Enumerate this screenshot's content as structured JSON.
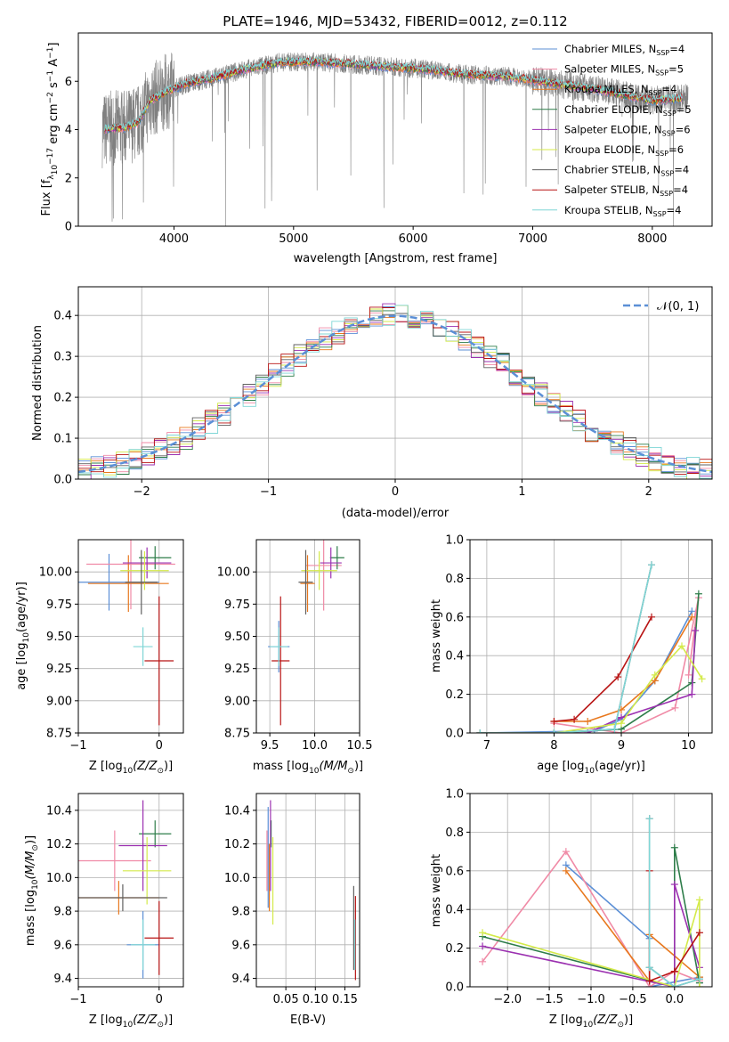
{
  "figure": {
    "title": "PLATE=1946, MJD=53432, FIBERID=0012, z=0.112"
  },
  "models": [
    {
      "name": "Chabrier MILES, N",
      "nssp": "4",
      "color": "#5b8fd6"
    },
    {
      "name": "Salpeter MILES, N",
      "nssp": "5",
      "color": "#f08aa6"
    },
    {
      "name": "Kroupa MILES, N",
      "nssp": "4",
      "color": "#e8781e"
    },
    {
      "name": "Chabrier ELODIE, N",
      "nssp": "5",
      "color": "#2e7d4a"
    },
    {
      "name": "Salpeter ELODIE, N",
      "nssp": "6",
      "color": "#9b30b0"
    },
    {
      "name": "Kroupa ELODIE, N",
      "nssp": "6",
      "color": "#d4ea4a"
    },
    {
      "name": "Chabrier STELIB, N",
      "nssp": "4",
      "color": "#606060"
    },
    {
      "name": "Salpeter STELIB, N",
      "nssp": "4",
      "color": "#b81414"
    },
    {
      "name": "Kroupa STELIB, N",
      "nssp": "4",
      "color": "#7fd6d6"
    }
  ],
  "chart_data": [
    {
      "id": "spectrum",
      "type": "line",
      "xlabel": "wavelength [Angstrom, rest frame]",
      "ylabel": "Flux [f",
      "ylabel_parts": [
        "Flux [f",
        "λ",
        "10",
        "−17",
        " erg cm",
        "−2",
        " s",
        "−1",
        " A",
        "−1",
        "]"
      ],
      "xlim": [
        3200,
        8500
      ],
      "ylim": [
        0,
        8
      ],
      "xticks": [
        4000,
        5000,
        6000,
        7000,
        8000
      ],
      "yticks": [
        0,
        2,
        4,
        6
      ],
      "legend_position": "upper-right",
      "nssp_label": "SSP",
      "continuum_points": [
        [
          3420,
          4.0
        ],
        [
          3600,
          4.1
        ],
        [
          3700,
          4.3
        ],
        [
          3800,
          5.2
        ],
        [
          3950,
          5.6
        ],
        [
          4100,
          5.9
        ],
        [
          4300,
          6.1
        ],
        [
          4600,
          6.5
        ],
        [
          4900,
          6.8
        ],
        [
          5200,
          6.8
        ],
        [
          5500,
          6.7
        ],
        [
          5800,
          6.6
        ],
        [
          6100,
          6.5
        ],
        [
          6400,
          6.3
        ],
        [
          6800,
          6.2
        ],
        [
          7200,
          5.9
        ],
        [
          7600,
          5.6
        ],
        [
          8000,
          5.2
        ],
        [
          8250,
          5.3
        ]
      ],
      "grey_data_range": [
        3400,
        8300
      ]
    },
    {
      "id": "residuals",
      "type": "histogram",
      "xlabel": "(data-model)/error",
      "ylabel": "Normed distribution",
      "xlim": [
        -2.5,
        2.5
      ],
      "ylim": [
        0,
        0.47
      ],
      "xticks": [
        -2,
        -1,
        0,
        1,
        2
      ],
      "yticks": [
        0.0,
        0.1,
        0.2,
        0.3,
        0.4
      ],
      "grid": true,
      "legend_label": "𝒩(0, 1)",
      "legend_position": "upper-right",
      "bin_width": 0.1
    },
    {
      "id": "age-vs-Z",
      "type": "scatter-errorbar",
      "xlabel": "Z [log",
      "xlabel_parts": [
        "Z [log",
        "10",
        "(Z/Z",
        "⊙",
        ")]"
      ],
      "ylabel_parts": [
        "age  [log",
        "10",
        "(age/yr)]"
      ],
      "xlim": [
        -1.0,
        0.3
      ],
      "ylim": [
        8.75,
        10.25
      ],
      "xticks": [
        -1,
        0
      ],
      "yticks": [
        8.75,
        9.0,
        9.25,
        9.5,
        9.75,
        10.0
      ],
      "grid": true,
      "points": [
        {
          "m": 0,
          "x": -0.62,
          "y": 9.92,
          "ex": 0.62,
          "ey": 0.22
        },
        {
          "m": 1,
          "x": -0.35,
          "y": 10.06,
          "ex": 0.55,
          "ey": 0.35
        },
        {
          "m": 2,
          "x": -0.38,
          "y": 9.91,
          "ex": 0.5,
          "ey": 0.22
        },
        {
          "m": 3,
          "x": -0.05,
          "y": 10.11,
          "ex": 0.2,
          "ey": 0.09
        },
        {
          "m": 4,
          "x": -0.15,
          "y": 10.07,
          "ex": 0.3,
          "ey": 0.12
        },
        {
          "m": 5,
          "x": -0.18,
          "y": 10.01,
          "ex": 0.3,
          "ey": 0.15
        },
        {
          "m": 6,
          "x": -0.22,
          "y": 9.92,
          "ex": 0.2,
          "ey": 0.25
        },
        {
          "m": 7,
          "x": 0.0,
          "y": 9.31,
          "ex": 0.18,
          "ey": 0.5
        },
        {
          "m": 8,
          "x": -0.2,
          "y": 9.42,
          "ex": 0.12,
          "ey": 0.15
        }
      ]
    },
    {
      "id": "age-vs-mass",
      "type": "scatter-errorbar",
      "xlabel_parts": [
        "mass [log",
        "10",
        "(M/M",
        "⊙",
        ")]"
      ],
      "xlim": [
        9.35,
        10.5
      ],
      "ylim": [
        8.75,
        10.25
      ],
      "xticks": [
        9.5,
        10.0,
        10.5
      ],
      "yticks": [
        8.75,
        9.0,
        9.25,
        9.5,
        9.75,
        10.0
      ],
      "grid": true,
      "points": [
        {
          "m": 0,
          "x": 9.6,
          "y": 9.42,
          "ex": 0.12,
          "ey": 0.2
        },
        {
          "m": 1,
          "x": 10.1,
          "y": 10.05,
          "ex": 0.2,
          "ey": 0.35
        },
        {
          "m": 2,
          "x": 9.92,
          "y": 9.91,
          "ex": 0.08,
          "ey": 0.22
        },
        {
          "m": 3,
          "x": 10.25,
          "y": 10.11,
          "ex": 0.08,
          "ey": 0.09
        },
        {
          "m": 4,
          "x": 10.18,
          "y": 10.07,
          "ex": 0.12,
          "ey": 0.12
        },
        {
          "m": 5,
          "x": 10.05,
          "y": 10.01,
          "ex": 0.2,
          "ey": 0.15
        },
        {
          "m": 6,
          "x": 9.9,
          "y": 9.92,
          "ex": 0.08,
          "ey": 0.25
        },
        {
          "m": 7,
          "x": 9.62,
          "y": 9.31,
          "ex": 0.1,
          "ey": 0.5
        },
        {
          "m": 8,
          "x": 9.6,
          "y": 9.42,
          "ex": 0.1,
          "ey": 0.15
        }
      ]
    },
    {
      "id": "weight-vs-age",
      "type": "line",
      "xlabel_parts": [
        "age  [log",
        "10",
        "(age/yr)]"
      ],
      "ylabel": "mass weight",
      "xlim": [
        6.75,
        10.35
      ],
      "ylim": [
        0.0,
        1.0
      ],
      "xticks": [
        7,
        8,
        9,
        10
      ],
      "yticks": [
        0.0,
        0.2,
        0.4,
        0.6,
        0.8,
        1.0
      ],
      "grid": true,
      "series": [
        {
          "m": 0,
          "x": [
            6.9,
            8.6,
            9.0,
            9.5,
            10.05
          ],
          "y": [
            0.0,
            0.01,
            0.07,
            0.27,
            0.63
          ]
        },
        {
          "m": 1,
          "x": [
            8.0,
            9.0,
            9.8,
            10.15,
            10.0
          ],
          "y": [
            0.05,
            0.0,
            0.13,
            0.7,
            0.3
          ]
        },
        {
          "m": 2,
          "x": [
            8.0,
            8.5,
            9.0,
            9.5,
            10.05
          ],
          "y": [
            0.06,
            0.06,
            0.12,
            0.27,
            0.6
          ]
        },
        {
          "m": 3,
          "x": [
            6.9,
            8.0,
            9.0,
            10.05,
            10.15
          ],
          "y": [
            0.0,
            0.0,
            0.02,
            0.26,
            0.72
          ]
        },
        {
          "m": 4,
          "x": [
            6.9,
            8.5,
            9.0,
            10.05,
            10.1
          ],
          "y": [
            0.0,
            0.0,
            0.08,
            0.2,
            0.53
          ]
        },
        {
          "m": 5,
          "x": [
            6.9,
            8.0,
            9.0,
            9.5,
            9.9,
            10.2
          ],
          "y": [
            0.0,
            0.0,
            0.05,
            0.3,
            0.45,
            0.28
          ]
        },
        {
          "m": 6,
          "x": [
            6.9,
            8.0,
            8.9,
            9.45
          ],
          "y": [
            0.0,
            0.0,
            0.02,
            0.87
          ]
        },
        {
          "m": 7,
          "x": [
            8.0,
            8.3,
            8.95,
            9.45
          ],
          "y": [
            0.06,
            0.07,
            0.29,
            0.6
          ]
        },
        {
          "m": 8,
          "x": [
            6.9,
            8.0,
            8.9,
            9.45
          ],
          "y": [
            0.0,
            0.0,
            0.02,
            0.87
          ]
        }
      ]
    },
    {
      "id": "mass-vs-Z",
      "type": "scatter-errorbar",
      "xlabel_parts": [
        "Z [log",
        "10",
        "(Z/Z",
        "⊙",
        ")]"
      ],
      "ylabel_parts": [
        "mass [log",
        "10",
        "(M/M",
        "⊙",
        ")]"
      ],
      "xlim": [
        -1.0,
        0.3
      ],
      "ylim": [
        9.35,
        10.5
      ],
      "xticks": [
        -1,
        0
      ],
      "yticks": [
        9.4,
        9.6,
        9.8,
        10.0,
        10.2,
        10.4
      ],
      "grid": true,
      "points": [
        {
          "m": 0,
          "x": -0.2,
          "y": 9.6,
          "ex": 0.2,
          "ey": 0.2
        },
        {
          "m": 1,
          "x": -0.55,
          "y": 10.1,
          "ex": 0.45,
          "ey": 0.18
        },
        {
          "m": 2,
          "x": -0.5,
          "y": 9.88,
          "ex": 0.5,
          "ey": 0.1
        },
        {
          "m": 3,
          "x": -0.05,
          "y": 10.26,
          "ex": 0.2,
          "ey": 0.08
        },
        {
          "m": 4,
          "x": -0.2,
          "y": 10.19,
          "ex": 0.3,
          "ey": 0.27
        },
        {
          "m": 5,
          "x": -0.15,
          "y": 10.04,
          "ex": 0.3,
          "ey": 0.2
        },
        {
          "m": 6,
          "x": -0.45,
          "y": 9.88,
          "ex": 0.55,
          "ey": 0.08
        },
        {
          "m": 7,
          "x": 0.0,
          "y": 9.64,
          "ex": 0.18,
          "ey": 0.22
        },
        {
          "m": 8,
          "x": -0.2,
          "y": 9.6,
          "ex": 0.15,
          "ey": 0.15
        }
      ]
    },
    {
      "id": "mass-vs-ebv",
      "type": "scatter-errorbar",
      "xlabel": "E(B-V)",
      "xlim": [
        0.0,
        0.175
      ],
      "ylim": [
        9.35,
        10.5
      ],
      "xticks": [
        0.05,
        0.1,
        0.15
      ],
      "yticks": [
        9.4,
        9.6,
        9.8,
        10.0,
        10.2,
        10.4
      ],
      "grid": true,
      "points": [
        {
          "m": 0,
          "x": 0.02,
          "y": 10.12,
          "ex": 0,
          "ey": 0.3
        },
        {
          "m": 1,
          "x": 0.018,
          "y": 10.1,
          "ex": 0,
          "ey": 0.18
        },
        {
          "m": 2,
          "x": 0.022,
          "y": 10.0,
          "ex": 0,
          "ey": 0.2
        },
        {
          "m": 3,
          "x": 0.025,
          "y": 10.26,
          "ex": 0,
          "ey": 0.08
        },
        {
          "m": 4,
          "x": 0.024,
          "y": 10.19,
          "ex": 0,
          "ey": 0.27
        },
        {
          "m": 5,
          "x": 0.028,
          "y": 9.98,
          "ex": 0,
          "ey": 0.26
        },
        {
          "m": 6,
          "x": 0.165,
          "y": 9.7,
          "ex": 0,
          "ey": 0.25
        },
        {
          "m": 7,
          "x": 0.168,
          "y": 9.64,
          "ex": 0,
          "ey": 0.25
        },
        {
          "m": 8,
          "x": 0.167,
          "y": 9.6,
          "ex": 0,
          "ey": 0.15
        }
      ]
    },
    {
      "id": "weight-vs-Z",
      "type": "line",
      "xlabel_parts": [
        "Z [log",
        "10",
        "(Z/Z",
        "⊙",
        ")]"
      ],
      "ylabel": "mass weight",
      "xlim": [
        -2.45,
        0.45
      ],
      "ylim": [
        0.0,
        1.0
      ],
      "xticks": [
        -2.0,
        -1.5,
        -1.0,
        -0.5,
        0.0
      ],
      "yticks": [
        0.0,
        0.2,
        0.4,
        0.6,
        0.8,
        1.0
      ],
      "grid": true,
      "series": [
        {
          "m": 0,
          "x": [
            -1.3,
            -0.3,
            -0.3,
            0.3,
            0.3
          ],
          "y": [
            0.63,
            0.25,
            0.0,
            0.05,
            0.02
          ]
        },
        {
          "m": 1,
          "x": [
            -2.3,
            -1.3,
            -0.3,
            0.0,
            0.3
          ],
          "y": [
            0.13,
            0.7,
            0.0,
            0.08,
            0.03
          ]
        },
        {
          "m": 2,
          "x": [
            -1.3,
            -0.3,
            -0.3,
            0.3
          ],
          "y": [
            0.6,
            0.03,
            0.27,
            0.05
          ]
        },
        {
          "m": 3,
          "x": [
            -2.3,
            0.0,
            0.0,
            0.3
          ],
          "y": [
            0.26,
            0.0,
            0.72,
            0.02
          ]
        },
        {
          "m": 4,
          "x": [
            -2.3,
            0.0,
            0.0,
            0.3
          ],
          "y": [
            0.21,
            0.0,
            0.53,
            0.1
          ]
        },
        {
          "m": 5,
          "x": [
            -2.3,
            0.0,
            0.3,
            0.3
          ],
          "y": [
            0.28,
            0.0,
            0.45,
            0.0
          ]
        },
        {
          "m": 6,
          "x": [
            -0.3,
            -0.3,
            0.0,
            0.3
          ],
          "y": [
            0.87,
            0.1,
            0.0,
            0.04
          ]
        },
        {
          "m": 7,
          "x": [
            -0.3,
            -0.3,
            0.0,
            0.3
          ],
          "y": [
            0.6,
            0.03,
            0.08,
            0.28
          ]
        },
        {
          "m": 8,
          "x": [
            -0.3,
            -0.3,
            0.0,
            0.3
          ],
          "y": [
            0.87,
            0.1,
            0.0,
            0.04
          ]
        }
      ]
    }
  ]
}
